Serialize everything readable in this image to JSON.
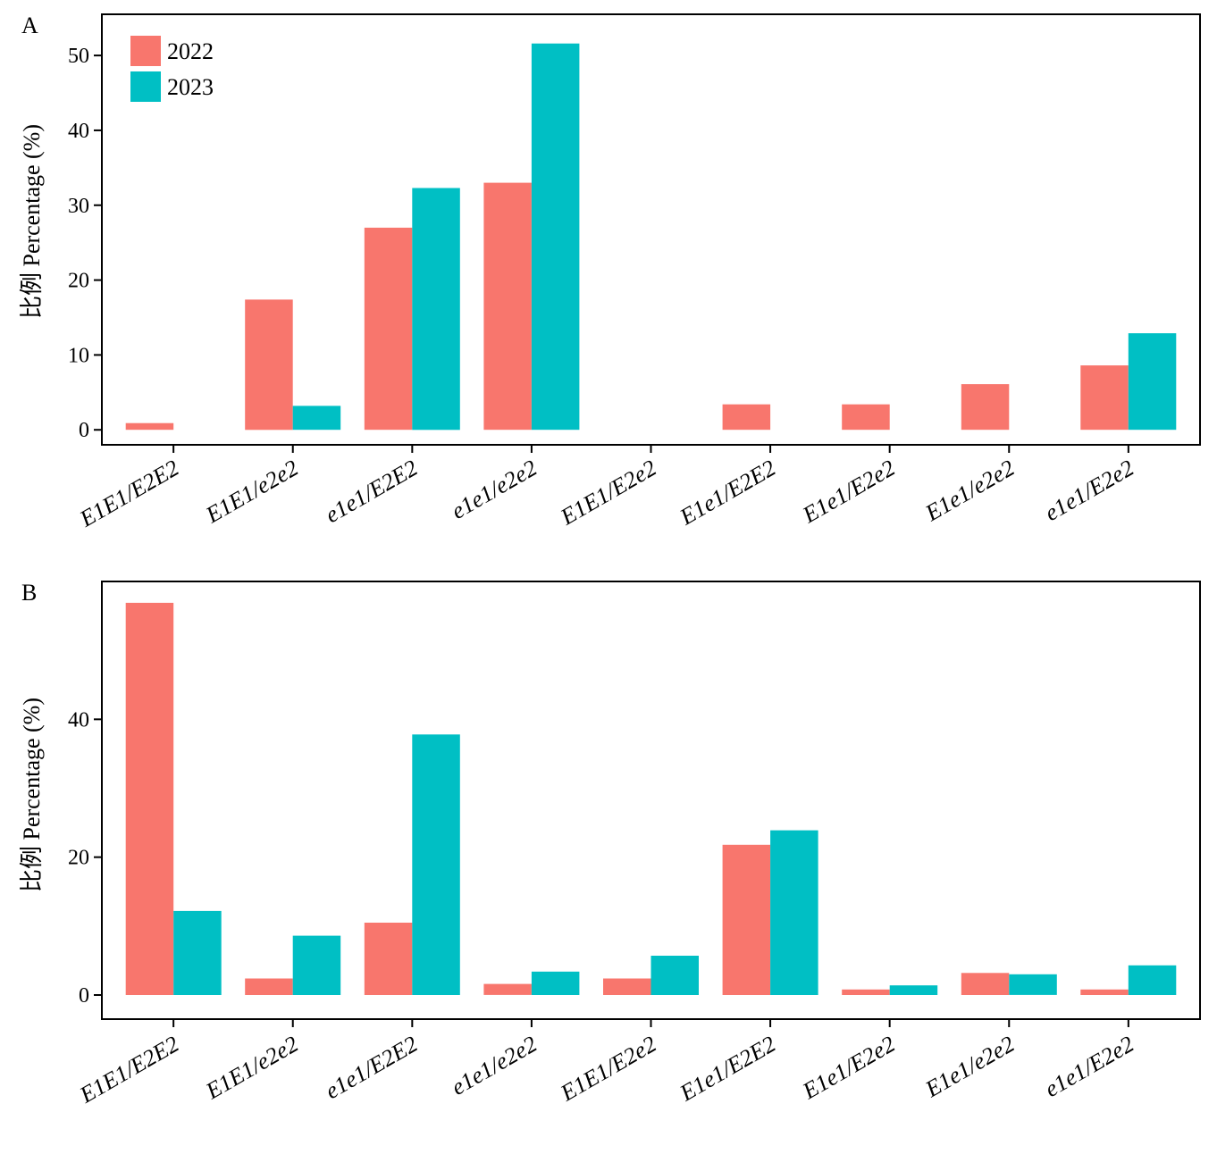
{
  "colors": {
    "2022": "#F8766D",
    "2023": "#00BFC4",
    "axis": "#000000"
  },
  "chart_data": [
    {
      "type": "bar",
      "panel_label": "A",
      "ylabel": "比例 Percentage (%)",
      "ylim": [
        -2,
        55.5
      ],
      "yticks": [
        0,
        10,
        20,
        30,
        40,
        50
      ],
      "categories": [
        "E1E1/E2E2",
        "E1E1/e2e2",
        "e1e1/E2E2",
        "e1e1/e2e2",
        "E1E1/E2e2",
        "E1e1/E2E2",
        "E1e1/E2e2",
        "E1e1/e2e2",
        "e1e1/E2e2"
      ],
      "series": [
        {
          "name": "2022",
          "values": [
            0.9,
            17.4,
            27.0,
            33.0,
            0,
            3.4,
            3.4,
            6.1,
            8.6
          ]
        },
        {
          "name": "2023",
          "values": [
            0,
            3.2,
            32.3,
            51.6,
            0,
            0,
            0,
            0,
            12.9
          ]
        }
      ],
      "legend": "top-left"
    },
    {
      "type": "bar",
      "panel_label": "B",
      "ylabel": "比例 Percentage (%)",
      "ylim": [
        -3.5,
        60
      ],
      "yticks": [
        0,
        20,
        40
      ],
      "categories": [
        "E1E1/E2E2",
        "E1E1/e2e2",
        "e1e1/E2E2",
        "e1e1/e2e2",
        "E1E1/E2e2",
        "E1e1/E2E2",
        "E1e1/E2e2",
        "E1e1/e2e2",
        "e1e1/E2e2"
      ],
      "series": [
        {
          "name": "2022",
          "values": [
            56.9,
            2.4,
            10.5,
            1.6,
            2.4,
            21.8,
            0.8,
            3.2,
            0.8
          ]
        },
        {
          "name": "2023",
          "values": [
            12.2,
            8.6,
            37.8,
            3.4,
            5.7,
            23.9,
            1.4,
            3.0,
            4.3
          ]
        }
      ]
    }
  ]
}
